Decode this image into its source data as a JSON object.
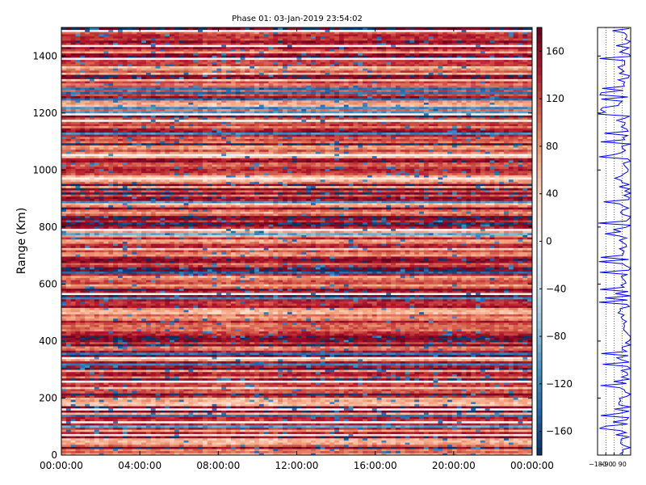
{
  "chart_data": [
    {
      "type": "heatmap",
      "title": "Phase 01: 03-Jan-2019 23:54:02",
      "xlabel": "",
      "ylabel": "Range (Km)",
      "x_ticks": [
        "00:00:00",
        "04:00:00",
        "08:00:00",
        "12:00:00",
        "16:00:00",
        "20:00:00",
        "00:00:00"
      ],
      "x_range_hours": [
        0,
        24
      ],
      "y_ticks": [
        0,
        200,
        400,
        600,
        800,
        1000,
        1200,
        1400
      ],
      "ylim": [
        0,
        1500
      ],
      "colormap": "RdBu_r",
      "colorbar": {
        "ticks": [
          160,
          120,
          80,
          40,
          0,
          -40,
          -80,
          -120,
          -160
        ],
        "range": [
          -180,
          180
        ]
      },
      "range_bin_km": 7.5,
      "time_bins": 100,
      "notes_colors": {
        "low": "#053061",
        "mid": "#f7f7f7",
        "high": "#67001f"
      }
    },
    {
      "type": "line",
      "xlabel": "",
      "ylabel": "",
      "x_ticks": [
        "-180",
        "-90",
        "0",
        "90"
      ],
      "xlim": [
        -180,
        180
      ],
      "ylim": [
        0,
        1500
      ],
      "line_color": "#0000ff"
    }
  ]
}
